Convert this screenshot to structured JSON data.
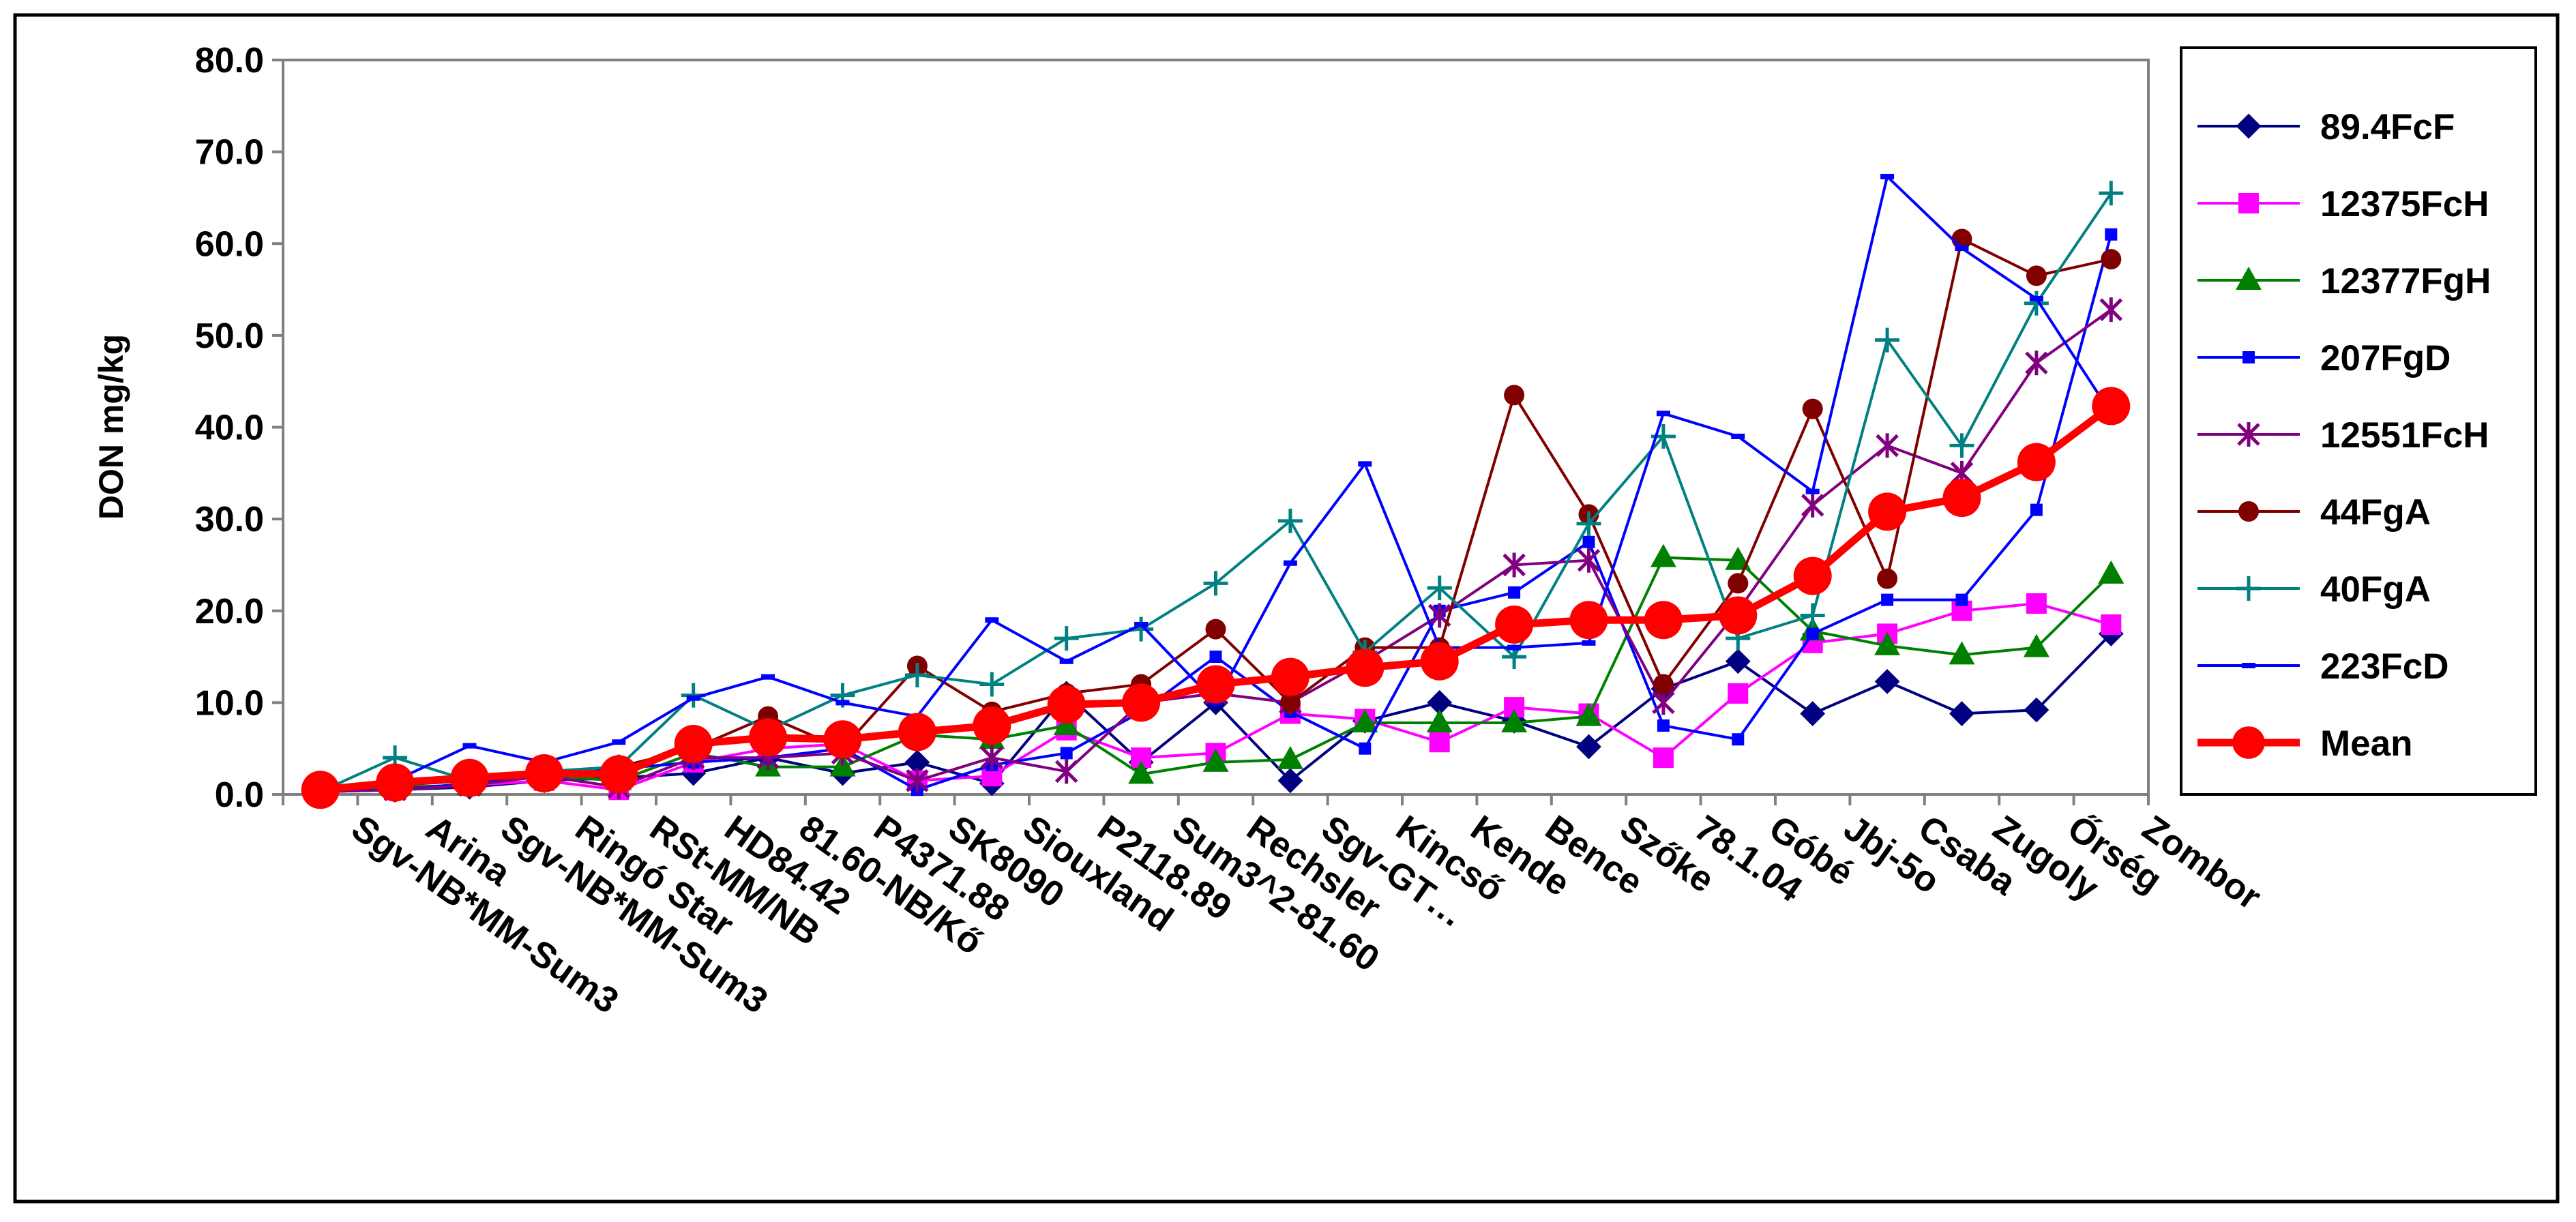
{
  "chart_data": {
    "type": "line",
    "title": "",
    "xlabel": "",
    "ylabel": "DON mg/kg",
    "ylim": [
      0,
      80
    ],
    "ytick_step": 10,
    "ytick_labels": [
      "0.0",
      "10.0",
      "20.0",
      "30.0",
      "40.0",
      "50.0",
      "60.0",
      "70.0",
      "80.0"
    ],
    "grid": false,
    "legend_position": "right",
    "categories": [
      "Sgv-NB*MM-Sum3",
      "Arina",
      "Sgv-NB*MM-Sum3",
      "Ringó Star",
      "RSt-MM/NB",
      "HD84.42",
      "81.60-NB/Kő",
      "P4371.88",
      "SK8090",
      "Siouxland",
      "P2118.89",
      "Sum3^2-81.60",
      "Rechsler",
      "Sgv-GT…",
      "Kincső",
      "Kende",
      "Bence",
      "Szőke",
      "78.1.04",
      "Góbé",
      "Jbj-5o",
      "Csaba",
      "Zugoly",
      "Őrség",
      "Zombor"
    ],
    "series": [
      {
        "name": "89.4FcF",
        "color": "#000080",
        "marker": "diamond",
        "values": [
          0.3,
          0.5,
          0.8,
          1.5,
          1.8,
          2.3,
          4.0,
          2.3,
          3.5,
          1.2,
          11.0,
          3.5,
          10.0,
          1.5,
          8.0,
          10.0,
          8.0,
          5.2,
          11.5,
          14.5,
          8.8,
          12.3,
          8.8,
          9.2,
          17.5
        ]
      },
      {
        "name": "12375FcH",
        "color": "#ff00ff",
        "marker": "square",
        "values": [
          0.3,
          0.5,
          1.0,
          1.5,
          0.5,
          3.5,
          5.0,
          5.5,
          1.5,
          2.0,
          7.0,
          4.0,
          4.5,
          8.8,
          8.2,
          5.7,
          9.5,
          8.8,
          4.0,
          11.0,
          16.5,
          17.5,
          20.0,
          20.8,
          18.5
        ]
      },
      {
        "name": "12377FgH",
        "color": "#008000",
        "marker": "triangle",
        "values": [
          0.3,
          0.8,
          1.0,
          2.0,
          1.5,
          4.5,
          3.0,
          3.0,
          6.5,
          6.0,
          7.5,
          2.2,
          3.5,
          3.8,
          7.8,
          7.8,
          7.8,
          8.5,
          25.8,
          25.5,
          17.8,
          16.2,
          15.2,
          16.0,
          24.0
        ]
      },
      {
        "name": "207FgD",
        "color": "#0000ff",
        "marker": "smallsquare",
        "values": [
          0.3,
          0.5,
          1.2,
          2.0,
          2.8,
          3.5,
          4.0,
          5.0,
          0.5,
          3.2,
          4.5,
          9.0,
          15.0,
          9.0,
          5.0,
          20.0,
          22.0,
          27.5,
          7.5,
          6.0,
          17.5,
          21.2,
          21.2,
          31.0,
          61.0
        ]
      },
      {
        "name": "12551FcH",
        "color": "#800080",
        "marker": "star",
        "values": [
          0.3,
          0.5,
          1.0,
          2.0,
          0.8,
          4.0,
          4.0,
          4.5,
          1.5,
          4.0,
          2.5,
          10.0,
          11.0,
          10.0,
          14.5,
          19.5,
          25.0,
          25.5,
          10.0,
          20.0,
          31.5,
          38.0,
          35.0,
          47.0,
          52.8
        ]
      },
      {
        "name": "44FgA",
        "color": "#800000",
        "marker": "circle",
        "values": [
          0.3,
          1.0,
          1.5,
          2.5,
          3.0,
          5.0,
          8.5,
          5.0,
          14.0,
          9.0,
          11.0,
          12.0,
          18.0,
          10.0,
          16.0,
          16.0,
          43.5,
          30.5,
          12.0,
          23.0,
          42.0,
          23.5,
          60.5,
          56.5,
          58.3
        ]
      },
      {
        "name": "40FgA",
        "color": "#008080",
        "marker": "plus",
        "values": [
          0.3,
          4.0,
          1.5,
          2.5,
          3.0,
          10.8,
          7.0,
          10.8,
          13.0,
          12.0,
          17.0,
          18.0,
          23.0,
          29.8,
          15.5,
          22.5,
          15.0,
          29.5,
          39.0,
          17.0,
          19.5,
          49.5,
          38.0,
          53.5,
          65.5
        ]
      },
      {
        "name": "223FcD",
        "color": "#0000ff",
        "marker": "dash",
        "values": [
          0.3,
          1.5,
          5.3,
          3.5,
          5.7,
          10.5,
          12.8,
          10.0,
          8.5,
          19.0,
          14.5,
          18.5,
          10.0,
          25.2,
          36.0,
          16.0,
          16.0,
          16.5,
          41.5,
          39.0,
          33.0,
          67.3,
          59.5,
          54.0,
          41.5
        ]
      },
      {
        "name": "Mean",
        "color": "#ff0000",
        "marker": "bigcircle",
        "values": [
          0.5,
          1.3,
          1.8,
          2.3,
          2.2,
          5.5,
          6.2,
          6.0,
          6.8,
          7.5,
          9.8,
          10.0,
          12.0,
          12.8,
          13.8,
          14.5,
          18.5,
          19.0,
          19.0,
          19.5,
          23.8,
          30.8,
          32.3,
          36.2,
          42.3
        ]
      }
    ]
  }
}
